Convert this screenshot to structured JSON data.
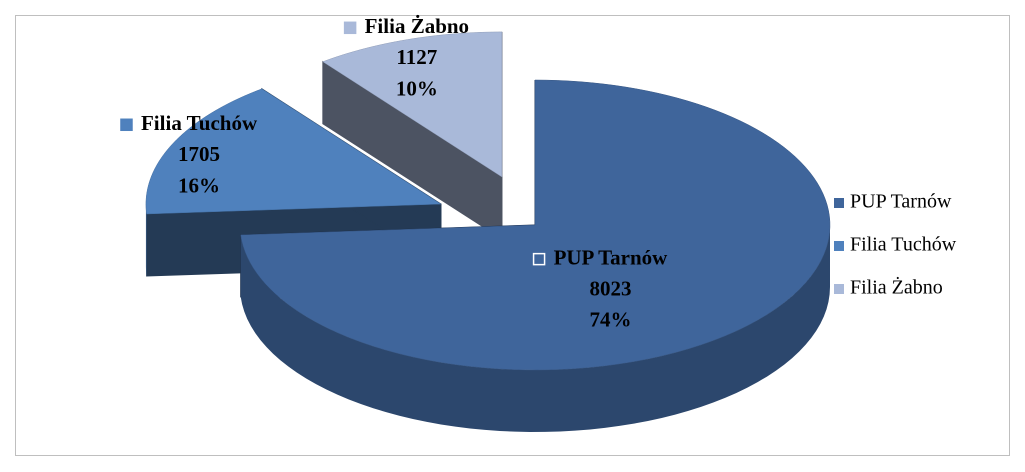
{
  "chart_data": {
    "type": "pie",
    "categories": [
      "PUP Tarnów",
      "Filia Tuchów",
      "Filia Żabno"
    ],
    "values": [
      8023,
      1705,
      1127
    ],
    "percentages": [
      74,
      16,
      10
    ],
    "colors": [
      "#3f659b",
      "#4f81bd",
      "#a9b9d9"
    ],
    "legend": "right"
  }
}
